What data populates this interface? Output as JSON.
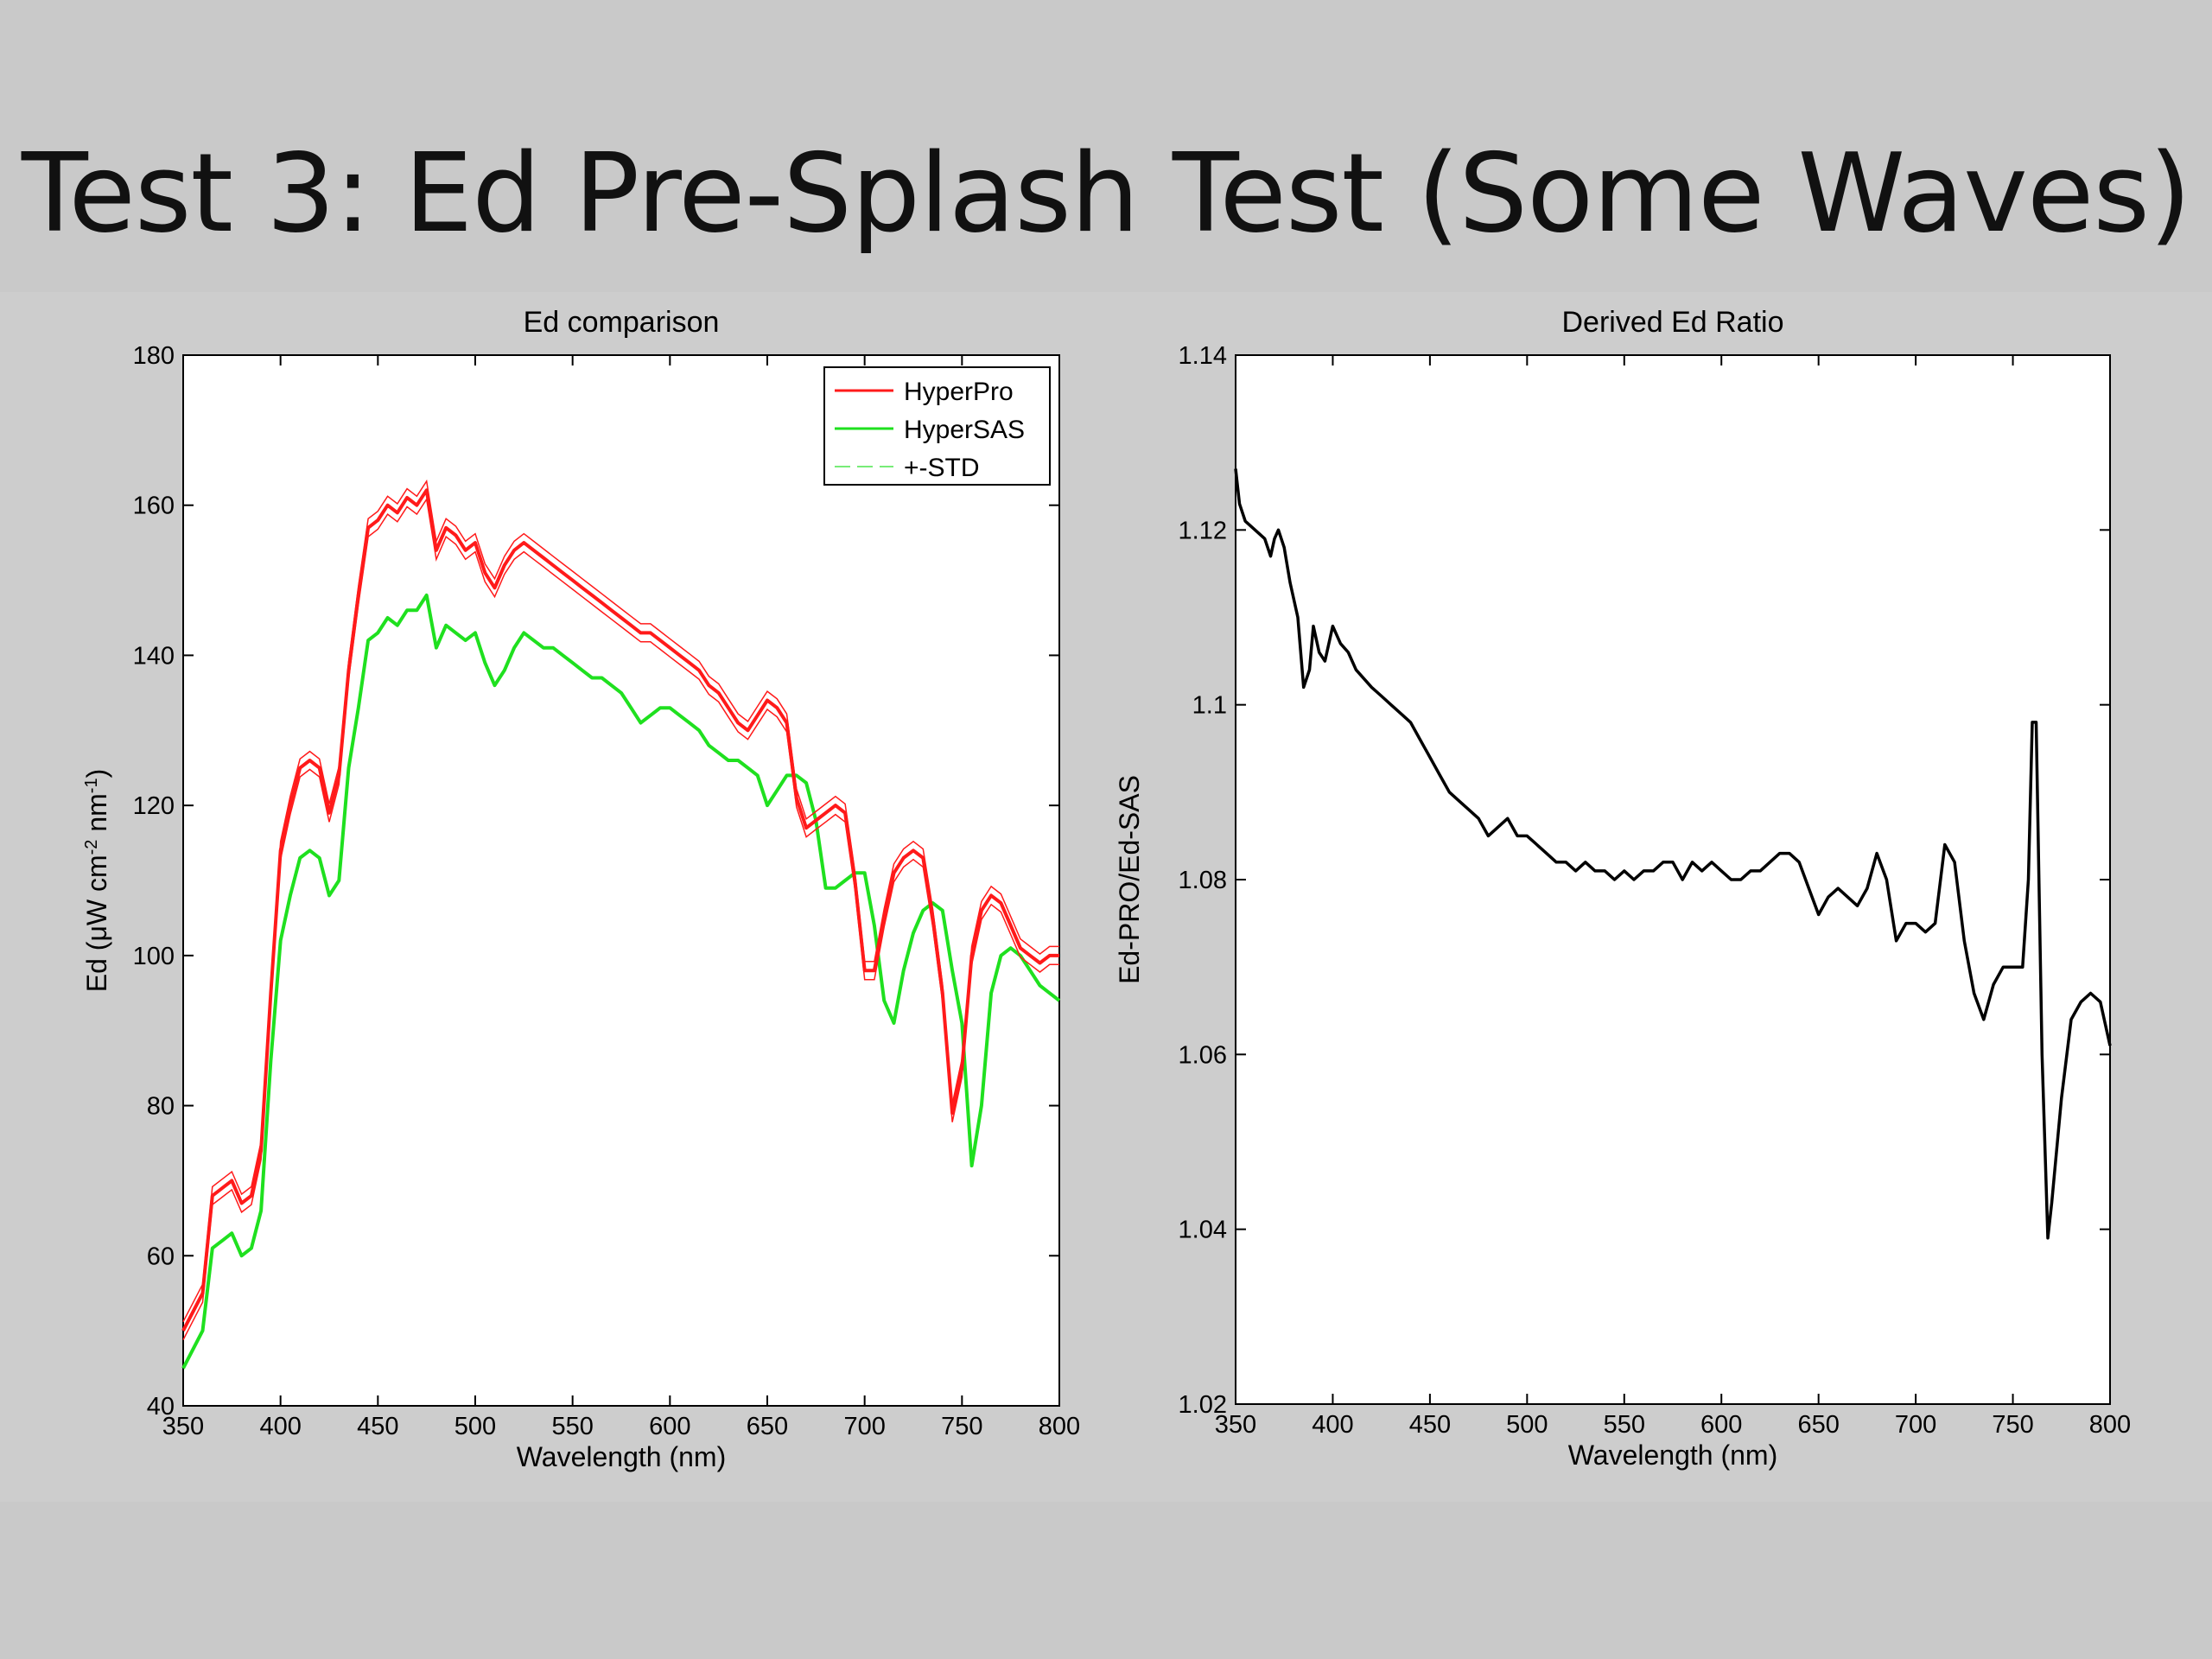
{
  "slide": {
    "title": "Test 3: Ed Pre-Splash Test (Some Waves)"
  },
  "colors": {
    "hyperpro": "#ff1a1a",
    "hypersas": "#1fe01f",
    "ratio": "#000000",
    "background": "#c9c9c9"
  },
  "chart_data": [
    {
      "type": "line",
      "title": "Ed comparison",
      "xlabel": "Wavelength (nm)",
      "ylabel_parts": {
        "base": "Ed (",
        "mu": "μ",
        "w": "W cm",
        "sup1": "-2",
        "nm": " nm",
        "sup2": "-1",
        "close": ")"
      },
      "xlim": [
        350,
        800
      ],
      "ylim": [
        40,
        180
      ],
      "xticks": [
        350,
        400,
        450,
        500,
        550,
        600,
        650,
        700,
        750,
        800
      ],
      "yticks": [
        40,
        60,
        80,
        100,
        120,
        140,
        160,
        180
      ],
      "legend": {
        "placement": "top-right",
        "entries": [
          "HyperPro",
          "HyperSAS",
          "+-STD"
        ]
      },
      "x": [
        350,
        360,
        365,
        370,
        375,
        380,
        385,
        390,
        395,
        400,
        405,
        410,
        415,
        420,
        425,
        430,
        435,
        440,
        445,
        450,
        455,
        460,
        465,
        470,
        475,
        480,
        485,
        490,
        495,
        500,
        505,
        510,
        515,
        520,
        525,
        530,
        535,
        540,
        545,
        550,
        555,
        560,
        565,
        570,
        575,
        580,
        585,
        590,
        595,
        600,
        605,
        610,
        615,
        620,
        625,
        630,
        635,
        640,
        645,
        650,
        655,
        660,
        665,
        670,
        675,
        680,
        685,
        690,
        695,
        700,
        705,
        710,
        715,
        720,
        725,
        730,
        735,
        740,
        745,
        750,
        755,
        760,
        765,
        770,
        775,
        780,
        785,
        790,
        795,
        800
      ],
      "series": [
        {
          "name": "HyperPro",
          "std": 1.2,
          "values": [
            50,
            55,
            68,
            69,
            70,
            67,
            68,
            74,
            95,
            114,
            120,
            125,
            126,
            125,
            119,
            124,
            138,
            148,
            157,
            158,
            160,
            159,
            161,
            160,
            162,
            154,
            157,
            156,
            154,
            155,
            151,
            149,
            152,
            154,
            155,
            154,
            153,
            152,
            151,
            150,
            149,
            148,
            147,
            146,
            145,
            144,
            143,
            143,
            142,
            141,
            140,
            139,
            138,
            136,
            135,
            133,
            131,
            130,
            132,
            134,
            133,
            131,
            121,
            117,
            118,
            119,
            120,
            119,
            110,
            98,
            98,
            105,
            111,
            113,
            114,
            113,
            105,
            95,
            79,
            85,
            100,
            106,
            108,
            107,
            104,
            101,
            100,
            99,
            100,
            100
          ]
        },
        {
          "name": "HyperSAS",
          "values": [
            45,
            50,
            61,
            62,
            63,
            60,
            61,
            66,
            86,
            102,
            108,
            113,
            114,
            113,
            108,
            110,
            125,
            133,
            142,
            143,
            145,
            144,
            146,
            146,
            148,
            141,
            144,
            143,
            142,
            143,
            139,
            136,
            138,
            141,
            143,
            142,
            141,
            141,
            140,
            139,
            138,
            137,
            137,
            136,
            135,
            133,
            131,
            132,
            133,
            133,
            132,
            131,
            130,
            128,
            127,
            126,
            126,
            125,
            124,
            120,
            122,
            124,
            124,
            123,
            118,
            109,
            109,
            110,
            111,
            111,
            104,
            94,
            91,
            98,
            103,
            106,
            107,
            106,
            98,
            91,
            72,
            80,
            95,
            100,
            101,
            100,
            98,
            96,
            95,
            94
          ]
        }
      ]
    },
    {
      "type": "line",
      "title": "Derived Ed Ratio",
      "xlabel": "Wavelength (nm)",
      "ylabel": "Ed-PRO/Ed-SAS",
      "xlim": [
        350,
        800
      ],
      "ylim": [
        1.02,
        1.14
      ],
      "xticks": [
        350,
        400,
        450,
        500,
        550,
        600,
        650,
        700,
        750,
        800
      ],
      "yticks": [
        "1.02",
        "1.04",
        "1.06",
        "1.08",
        "1.1",
        "1.12",
        "1.14"
      ],
      "x": [
        350,
        352,
        355,
        360,
        365,
        368,
        370,
        372,
        375,
        378,
        382,
        385,
        388,
        390,
        393,
        396,
        400,
        404,
        408,
        412,
        416,
        420,
        425,
        430,
        435,
        440,
        445,
        450,
        455,
        460,
        465,
        470,
        475,
        480,
        485,
        490,
        495,
        500,
        505,
        510,
        515,
        520,
        525,
        530,
        535,
        540,
        545,
        550,
        555,
        560,
        565,
        570,
        575,
        580,
        585,
        590,
        595,
        600,
        605,
        610,
        615,
        620,
        625,
        630,
        635,
        640,
        645,
        650,
        655,
        660,
        665,
        670,
        675,
        680,
        685,
        690,
        695,
        700,
        705,
        710,
        715,
        720,
        725,
        730,
        735,
        740,
        745,
        750,
        755,
        758,
        760,
        762,
        765,
        768,
        770,
        775,
        780,
        785,
        790,
        795,
        800
      ],
      "series": [
        {
          "name": "Ratio",
          "values": [
            1.127,
            1.123,
            1.121,
            1.12,
            1.119,
            1.117,
            1.119,
            1.12,
            1.118,
            1.114,
            1.11,
            1.102,
            1.104,
            1.109,
            1.106,
            1.105,
            1.109,
            1.107,
            1.106,
            1.104,
            1.103,
            1.102,
            1.101,
            1.1,
            1.099,
            1.098,
            1.096,
            1.094,
            1.092,
            1.09,
            1.089,
            1.088,
            1.087,
            1.085,
            1.086,
            1.087,
            1.085,
            1.085,
            1.084,
            1.083,
            1.082,
            1.082,
            1.081,
            1.082,
            1.081,
            1.081,
            1.08,
            1.081,
            1.08,
            1.081,
            1.081,
            1.082,
            1.082,
            1.08,
            1.082,
            1.081,
            1.082,
            1.081,
            1.08,
            1.08,
            1.081,
            1.081,
            1.082,
            1.083,
            1.083,
            1.082,
            1.079,
            1.076,
            1.078,
            1.079,
            1.078,
            1.077,
            1.079,
            1.083,
            1.08,
            1.073,
            1.075,
            1.075,
            1.074,
            1.075,
            1.084,
            1.082,
            1.073,
            1.067,
            1.064,
            1.068,
            1.07,
            1.07,
            1.07,
            1.08,
            1.098,
            1.098,
            1.06,
            1.039,
            1.043,
            1.055,
            1.064,
            1.066,
            1.067,
            1.066,
            1.061
          ]
        }
      ]
    }
  ]
}
